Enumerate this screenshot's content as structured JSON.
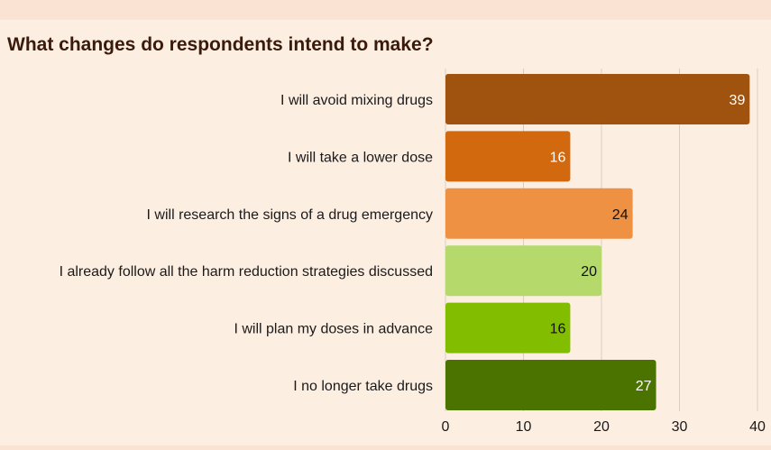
{
  "chart_data": {
    "type": "bar",
    "orientation": "horizontal",
    "title": "What changes do respondents intend to make?",
    "categories": [
      "I will avoid mixing drugs",
      "I will take a lower dose",
      "I will research the signs of a drug emergency",
      "I already follow all the harm reduction strategies discussed",
      "I will plan my doses in advance",
      "I no longer take drugs"
    ],
    "values": [
      39,
      16,
      24,
      20,
      16,
      27
    ],
    "colors": [
      "#a0520f",
      "#d2690e",
      "#ee9142",
      "#b5d96a",
      "#82bd00",
      "#4b7300"
    ],
    "label_colors": [
      "#ffffff",
      "#ffffff",
      "#111111",
      "#111111",
      "#111111",
      "#ffffff"
    ],
    "xlim": [
      0,
      40
    ],
    "xticks": [
      0,
      10,
      20,
      30,
      40
    ],
    "grid": true,
    "xlabel": "",
    "ylabel": ""
  }
}
